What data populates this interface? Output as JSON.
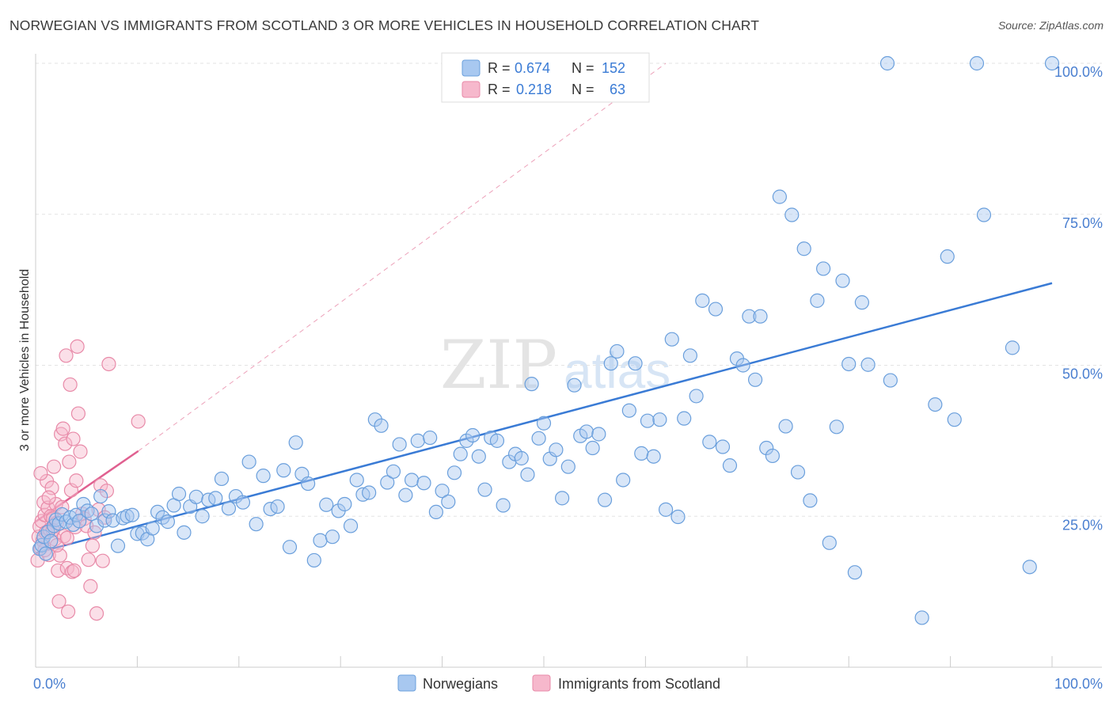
{
  "title": "NORWEGIAN VS IMMIGRANTS FROM SCOTLAND 3 OR MORE VEHICLES IN HOUSEHOLD CORRELATION CHART",
  "source": "Source: ZipAtlas.com",
  "watermark": {
    "zip": "ZIP",
    "atlas": "atlas"
  },
  "legend_top": [
    {
      "r_label": "R =",
      "r_value": "0.674",
      "n_label": "N =",
      "n_value": "152"
    },
    {
      "r_label": "R =",
      "r_value": "0.218",
      "n_label": "N =",
      "n_value": "63"
    }
  ],
  "chart_data": {
    "type": "scatter",
    "ylabel": "3 or more Vehicles in Household",
    "xlabel": "",
    "x_tick_labels": [
      "0.0%",
      "100.0%"
    ],
    "y_tick_labels": [
      "25.0%",
      "50.0%",
      "75.0%",
      "100.0%"
    ],
    "y_ticks": [
      25,
      50,
      75,
      100
    ],
    "xlim": [
      0,
      100
    ],
    "ylim": [
      0,
      100
    ],
    "grid": true,
    "legend_position": "bottom-center",
    "colors": {
      "norwegians_fill": "#a8c8f0",
      "norwegians_stroke": "#6a9fdc",
      "norwegians_line": "#3a7bd5",
      "scotland_fill": "#f6b8cc",
      "scotland_stroke": "#e88aa8",
      "scotland_line": "#e06090",
      "tick_label": "#4a7fd0"
    },
    "series": [
      {
        "name": "Norwegians",
        "trend": {
          "x": [
            0,
            100
          ],
          "y": [
            18.9,
            63.6
          ]
        },
        "points": [
          [
            0.4,
            19.6
          ],
          [
            0.6,
            20.2
          ],
          [
            0.8,
            21.6
          ],
          [
            1.0,
            18.8
          ],
          [
            1.2,
            22.4
          ],
          [
            1.5,
            20.9
          ],
          [
            1.8,
            23.4
          ],
          [
            2.0,
            24.4
          ],
          [
            2.3,
            23.8
          ],
          [
            2.6,
            25.3
          ],
          [
            3.0,
            24.1
          ],
          [
            3.4,
            24.8
          ],
          [
            3.7,
            23.6
          ],
          [
            4.0,
            25.2
          ],
          [
            4.3,
            24.2
          ],
          [
            4.7,
            27.0
          ],
          [
            5.1,
            25.9
          ],
          [
            5.5,
            25.4
          ],
          [
            6.0,
            23.4
          ],
          [
            6.4,
            28.3
          ],
          [
            6.8,
            24.3
          ],
          [
            7.2,
            25.8
          ],
          [
            7.6,
            24.3
          ],
          [
            8.1,
            20.1
          ],
          [
            8.6,
            24.7
          ],
          [
            9.0,
            25.0
          ],
          [
            9.5,
            25.2
          ],
          [
            10.0,
            22.1
          ],
          [
            10.5,
            22.2
          ],
          [
            11.0,
            21.2
          ],
          [
            11.5,
            23.0
          ],
          [
            12.0,
            25.7
          ],
          [
            12.5,
            24.8
          ],
          [
            13.0,
            24.1
          ],
          [
            13.6,
            26.8
          ],
          [
            14.1,
            28.7
          ],
          [
            14.6,
            22.3
          ],
          [
            15.2,
            26.6
          ],
          [
            15.8,
            28.2
          ],
          [
            16.4,
            25.0
          ],
          [
            17.0,
            27.7
          ],
          [
            17.7,
            28.0
          ],
          [
            18.3,
            31.2
          ],
          [
            19.0,
            26.3
          ],
          [
            19.7,
            28.3
          ],
          [
            20.4,
            27.3
          ],
          [
            21.0,
            34.0
          ],
          [
            21.7,
            23.7
          ],
          [
            22.4,
            31.7
          ],
          [
            23.1,
            26.2
          ],
          [
            23.8,
            26.6
          ],
          [
            24.4,
            32.6
          ],
          [
            25.0,
            19.9
          ],
          [
            25.6,
            37.2
          ],
          [
            26.2,
            32.0
          ],
          [
            26.8,
            30.4
          ],
          [
            27.4,
            17.7
          ],
          [
            28.0,
            21.0
          ],
          [
            28.6,
            26.9
          ],
          [
            29.2,
            21.6
          ],
          [
            29.8,
            25.9
          ],
          [
            30.4,
            27.0
          ],
          [
            31.0,
            23.4
          ],
          [
            31.6,
            31.0
          ],
          [
            32.2,
            28.6
          ],
          [
            32.8,
            28.9
          ],
          [
            33.4,
            41.0
          ],
          [
            34.0,
            40.0
          ],
          [
            34.6,
            30.6
          ],
          [
            35.2,
            32.4
          ],
          [
            35.8,
            36.9
          ],
          [
            36.4,
            28.5
          ],
          [
            37.0,
            31.0
          ],
          [
            37.6,
            37.5
          ],
          [
            38.2,
            30.5
          ],
          [
            38.8,
            38.0
          ],
          [
            39.4,
            25.7
          ],
          [
            40.0,
            29.2
          ],
          [
            40.6,
            27.4
          ],
          [
            41.2,
            32.2
          ],
          [
            41.8,
            35.3
          ],
          [
            42.4,
            37.5
          ],
          [
            43.0,
            38.4
          ],
          [
            43.6,
            34.9
          ],
          [
            44.2,
            29.4
          ],
          [
            44.8,
            38.0
          ],
          [
            45.4,
            37.5
          ],
          [
            46.0,
            26.8
          ],
          [
            46.6,
            34.0
          ],
          [
            47.2,
            35.3
          ],
          [
            47.8,
            34.6
          ],
          [
            48.4,
            31.9
          ],
          [
            48.8,
            46.9
          ],
          [
            49.5,
            37.9
          ],
          [
            50.0,
            40.4
          ],
          [
            50.6,
            34.5
          ],
          [
            51.2,
            36.0
          ],
          [
            51.8,
            28.0
          ],
          [
            52.4,
            33.2
          ],
          [
            53.0,
            46.7
          ],
          [
            53.6,
            38.3
          ],
          [
            54.2,
            39.0
          ],
          [
            54.8,
            36.3
          ],
          [
            55.4,
            38.6
          ],
          [
            56.0,
            27.7
          ],
          [
            56.6,
            50.3
          ],
          [
            57.2,
            52.3
          ],
          [
            57.8,
            31.0
          ],
          [
            58.4,
            42.5
          ],
          [
            59.0,
            50.3
          ],
          [
            59.6,
            35.4
          ],
          [
            60.2,
            40.8
          ],
          [
            60.8,
            34.9
          ],
          [
            61.4,
            41.0
          ],
          [
            62.0,
            26.1
          ],
          [
            62.6,
            54.3
          ],
          [
            63.2,
            24.9
          ],
          [
            63.8,
            41.2
          ],
          [
            64.4,
            51.6
          ],
          [
            65.0,
            44.9
          ],
          [
            65.6,
            60.7
          ],
          [
            66.3,
            37.3
          ],
          [
            66.9,
            59.3
          ],
          [
            67.6,
            36.5
          ],
          [
            68.3,
            33.4
          ],
          [
            69.0,
            51.1
          ],
          [
            69.6,
            50.0
          ],
          [
            70.2,
            58.1
          ],
          [
            70.8,
            47.6
          ],
          [
            71.3,
            58.1
          ],
          [
            71.9,
            36.3
          ],
          [
            72.5,
            35.0
          ],
          [
            73.2,
            77.9
          ],
          [
            73.8,
            39.9
          ],
          [
            74.4,
            74.9
          ],
          [
            75.0,
            32.3
          ],
          [
            75.6,
            69.3
          ],
          [
            76.2,
            27.6
          ],
          [
            76.9,
            60.7
          ],
          [
            77.5,
            66.0
          ],
          [
            78.1,
            20.6
          ],
          [
            78.8,
            39.8
          ],
          [
            79.4,
            64.0
          ],
          [
            80.0,
            50.2
          ],
          [
            80.6,
            15.7
          ],
          [
            81.3,
            60.4
          ],
          [
            81.9,
            50.1
          ],
          [
            83.8,
            100.0
          ],
          [
            84.1,
            47.5
          ],
          [
            87.2,
            8.2
          ],
          [
            88.5,
            43.5
          ],
          [
            89.7,
            68.0
          ],
          [
            90.4,
            41.0
          ],
          [
            92.6,
            100.0
          ],
          [
            93.3,
            74.9
          ],
          [
            96.1,
            52.9
          ],
          [
            97.8,
            16.6
          ],
          [
            100.0,
            100.0
          ]
        ]
      },
      {
        "name": "Immigrants from Scotland",
        "trend": {
          "x": [
            0,
            10.1
          ],
          "y": [
            24.1,
            35.8
          ]
        },
        "trend_extended": {
          "x": [
            10.1,
            62.0
          ],
          "y": [
            35.8,
            100.0
          ]
        },
        "points": [
          [
            0.2,
            17.7
          ],
          [
            0.3,
            21.6
          ],
          [
            0.4,
            23.3
          ],
          [
            0.5,
            19.7
          ],
          [
            0.6,
            24.2
          ],
          [
            0.7,
            21.0
          ],
          [
            0.8,
            27.3
          ],
          [
            0.9,
            25.2
          ],
          [
            1.0,
            22.3
          ],
          [
            1.1,
            30.8
          ],
          [
            1.2,
            26.4
          ],
          [
            1.3,
            18.6
          ],
          [
            1.4,
            22.8
          ],
          [
            1.5,
            25.0
          ],
          [
            1.6,
            29.7
          ],
          [
            1.7,
            24.6
          ],
          [
            1.8,
            33.2
          ],
          [
            1.9,
            21.2
          ],
          [
            2.0,
            27.0
          ],
          [
            2.1,
            23.9
          ],
          [
            2.2,
            16.0
          ],
          [
            2.3,
            10.9
          ],
          [
            2.4,
            18.5
          ],
          [
            2.5,
            38.6
          ],
          [
            2.6,
            26.5
          ],
          [
            2.7,
            39.5
          ],
          [
            2.8,
            21.7
          ],
          [
            2.9,
            37.0
          ],
          [
            3.0,
            51.6
          ],
          [
            3.1,
            16.4
          ],
          [
            3.2,
            9.2
          ],
          [
            3.3,
            34.0
          ],
          [
            3.4,
            46.8
          ],
          [
            3.5,
            29.3
          ],
          [
            3.6,
            15.8
          ],
          [
            3.7,
            37.8
          ],
          [
            3.8,
            16.0
          ],
          [
            3.9,
            23.2
          ],
          [
            4.0,
            30.9
          ],
          [
            4.1,
            53.1
          ],
          [
            4.2,
            42.0
          ],
          [
            4.4,
            35.7
          ],
          [
            4.6,
            25.4
          ],
          [
            4.8,
            24.6
          ],
          [
            5.0,
            23.4
          ],
          [
            5.2,
            17.8
          ],
          [
            5.4,
            13.4
          ],
          [
            5.6,
            20.1
          ],
          [
            5.8,
            22.3
          ],
          [
            6.0,
            8.9
          ],
          [
            6.2,
            26.1
          ],
          [
            6.4,
            30.1
          ],
          [
            6.6,
            17.6
          ],
          [
            6.8,
            24.8
          ],
          [
            7.0,
            29.2
          ],
          [
            7.2,
            50.2
          ],
          [
            0.5,
            32.1
          ],
          [
            0.9,
            19.4
          ],
          [
            1.3,
            28.1
          ],
          [
            1.7,
            22.7
          ],
          [
            2.1,
            20.2
          ],
          [
            3.1,
            21.4
          ],
          [
            10.1,
            40.7
          ]
        ]
      }
    ]
  },
  "legend_bottom": [
    "Norwegians",
    "Immigrants from Scotland"
  ]
}
